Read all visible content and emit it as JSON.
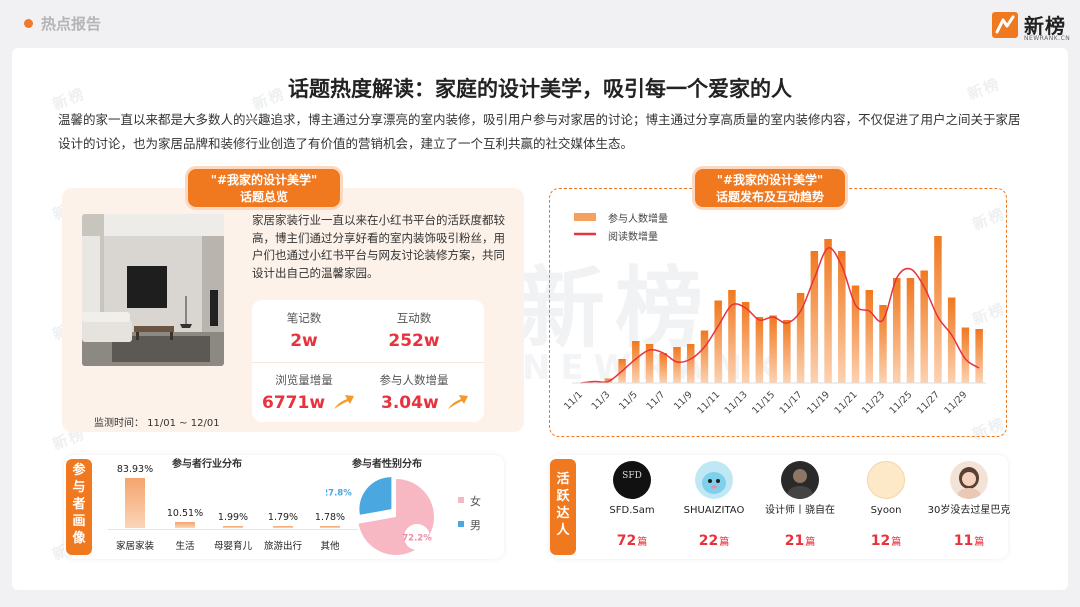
{
  "header": {
    "section_title": "热点报告",
    "brand_name": "新榜",
    "brand_sub": "NEWRANK.CN"
  },
  "watermark": {
    "text": "新榜",
    "latin": "NEWRANK"
  },
  "title": "话题热度解读：家庭的设计美学，吸引每一个爱家的人",
  "intro": "温馨的家一直以来都是大多数人的兴趣追求，博主通过分享漂亮的室内装修，吸引用户参与对家居的讨论；博主通过分享高质量的室内装修内容，不仅促进了用户之间关于家居设计的讨论，也为家居品牌和装修行业创造了有价值的营销机会，建立了一个互利共赢的社交媒体生态。",
  "overview": {
    "tag_line1": "\"#我家的设计美学\"",
    "tag_line2": "话题总览",
    "description": "家居家装行业一直以来在小红书平台的活跃度都较高，博主们通过分享好看的室内装饰吸引粉丝，用户们也通过小红书平台与网友讨论装修方案，共同设计出自己的温馨家园。",
    "monitor_period": "监测时间：  11/01 ~ 12/01",
    "stats": [
      {
        "label": "笔记数",
        "value": "2w",
        "rising": false
      },
      {
        "label": "互动数",
        "value": "252w",
        "rising": false
      },
      {
        "label": "浏览量增量",
        "value": "6771w",
        "rising": true
      },
      {
        "label": "参与人数增量",
        "value": "3.04w",
        "rising": true
      }
    ]
  },
  "trend": {
    "tag_line1": "\"#我家的设计美学\"",
    "tag_line2": "话题发布及互动趋势",
    "legend": {
      "bar": "参与人数增量",
      "line": "阅读数增量"
    }
  },
  "chart_data": {
    "type": "bar",
    "categories": [
      "11/1",
      "11/2",
      "11/3",
      "11/4",
      "11/5",
      "11/6",
      "11/7",
      "11/8",
      "11/9",
      "11/10",
      "11/11",
      "11/12",
      "11/13",
      "11/14",
      "11/15",
      "11/16",
      "11/17",
      "11/18",
      "11/19",
      "11/20",
      "11/21",
      "11/22",
      "11/23",
      "11/24",
      "11/25",
      "11/26",
      "11/27",
      "11/28",
      "11/29",
      "11/30"
    ],
    "tick_labels": [
      "11/1",
      "11/3",
      "11/5",
      "11/7",
      "11/9",
      "11/11",
      "11/13",
      "11/15",
      "11/17",
      "11/19",
      "11/21",
      "11/23",
      "11/25",
      "11/27",
      "11/29"
    ],
    "series": [
      {
        "name": "参与人数增量",
        "kind": "bar",
        "color": "#f0781f",
        "values": [
          0,
          0,
          3,
          16,
          28,
          26,
          20,
          24,
          26,
          35,
          55,
          62,
          54,
          44,
          45,
          42,
          60,
          88,
          96,
          88,
          65,
          62,
          52,
          70,
          70,
          75,
          98,
          57,
          37,
          36
        ]
      },
      {
        "name": "阅读数增量",
        "kind": "line",
        "color": "#e8323d",
        "values": [
          0,
          1,
          1,
          8,
          16,
          22,
          20,
          14,
          16,
          24,
          38,
          52,
          50,
          42,
          44,
          40,
          48,
          70,
          90,
          78,
          52,
          48,
          42,
          70,
          76,
          64,
          44,
          32,
          16,
          10
        ]
      }
    ]
  },
  "persona": {
    "tag": "参与者画像",
    "industry_title": "参与者行业分布",
    "gender_title": "参与者性别分布",
    "industry": [
      {
        "category": "家居家装",
        "percent": "83.93%",
        "value": 83.93
      },
      {
        "category": "生活",
        "percent": "10.51%",
        "value": 10.51
      },
      {
        "category": "母婴育儿",
        "percent": "1.99%",
        "value": 1.99
      },
      {
        "category": "旅游出行",
        "percent": "1.79%",
        "value": 1.79
      },
      {
        "category": "其他",
        "percent": "1.78%",
        "value": 1.78
      }
    ],
    "gender": [
      {
        "label": "女",
        "percent": "72.2%",
        "value": 72.2,
        "color": "#f7b8c4"
      },
      {
        "label": "男",
        "percent": "27.8%",
        "value": 27.8,
        "color": "#4aa7df"
      }
    ]
  },
  "experts": {
    "tag": "活跃达人",
    "unit": "篇",
    "people": [
      {
        "name": "SFD.Sam",
        "count": "72",
        "logo_text": "SFD"
      },
      {
        "name": "SHUAIZITAO",
        "count": "22"
      },
      {
        "name": "设计师丨骁自在",
        "count": "21"
      },
      {
        "name": "Syoon",
        "count": "12"
      },
      {
        "name": "30岁没去过星巴克",
        "count": "11"
      }
    ]
  }
}
